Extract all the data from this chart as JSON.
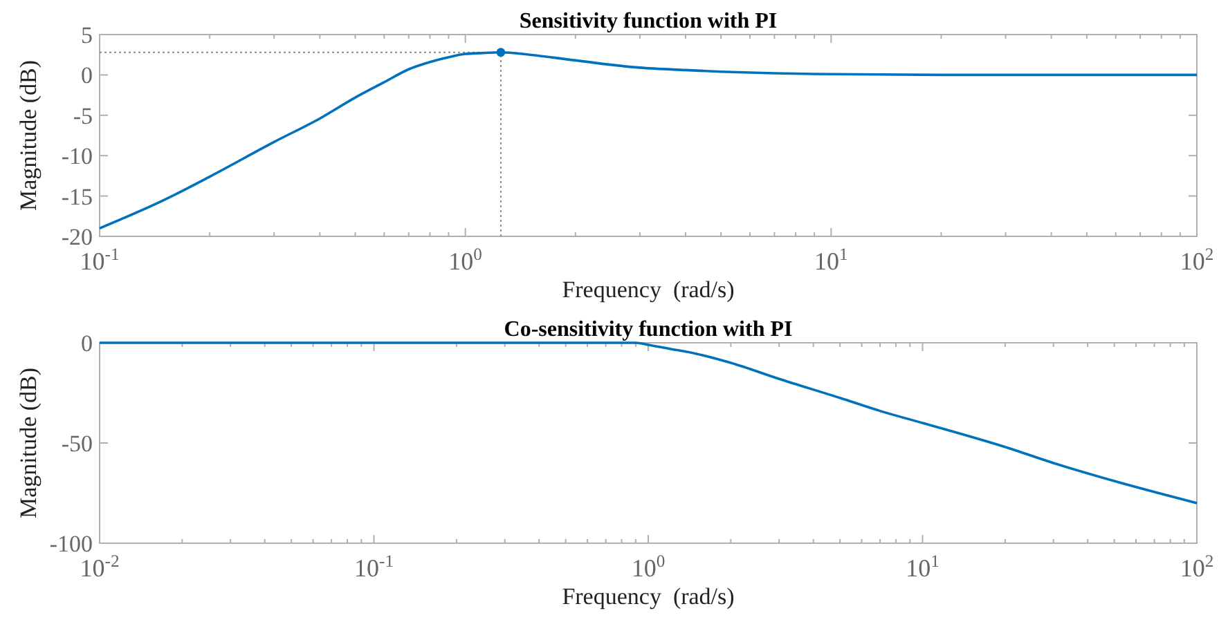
{
  "chart_data": [
    {
      "type": "line",
      "title": "Sensitivity function with PI",
      "xlabel": "Frequency  (rad/s)",
      "ylabel": "Magnitude (dB)",
      "log": "x",
      "xlim": [
        0.1,
        100
      ],
      "ylim": [
        -20,
        5
      ],
      "xticks": [
        {
          "value": 0.1,
          "label": "10$^{-1}$"
        },
        {
          "value": 1,
          "label": "10$^{0}$"
        },
        {
          "value": 10,
          "label": "10$^{1}$"
        },
        {
          "value": 100,
          "label": "10$^{2}$"
        }
      ],
      "yticks": [
        -20,
        -15,
        -10,
        -5,
        0,
        5
      ],
      "grid": false,
      "series": [
        {
          "color": "#0072bd",
          "x": [
            0.1,
            0.15,
            0.2,
            0.3,
            0.4,
            0.5,
            0.6,
            0.7,
            0.8,
            0.9,
            1.0,
            1.1,
            1.25,
            1.5,
            2,
            3,
            4,
            5,
            7,
            10,
            20,
            50,
            100
          ],
          "values": [
            -19,
            -15.5,
            -12.6,
            -8.3,
            -5.4,
            -2.8,
            -0.9,
            0.7,
            1.6,
            2.2,
            2.6,
            2.7,
            2.8,
            2.5,
            1.8,
            0.9,
            0.6,
            0.4,
            0.2,
            0.1,
            0,
            0,
            0
          ]
        },
        {
          "type": "scatter",
          "marker": "circle",
          "color": "#0072bd",
          "x": [
            1.25
          ],
          "values": [
            2.8
          ]
        }
      ],
      "ref_lines": [
        {
          "axis": "x",
          "value": 1.25,
          "color": "#8c8c8c",
          "line_style": "dotted"
        },
        {
          "axis": "y",
          "value": 2.8,
          "color": "#8c8c8c",
          "line_style": "dotted"
        }
      ]
    },
    {
      "type": "line",
      "title": "Co-sensitivity function with PI",
      "xlabel": "Frequency  (rad/s)",
      "ylabel": "Magnitude (dB)",
      "log": "x",
      "xlim": [
        0.01,
        100
      ],
      "ylim": [
        -100,
        0
      ],
      "xticks": [
        {
          "value": 0.01,
          "label": "10$^{-2}$"
        },
        {
          "value": 0.1,
          "label": "10$^{-1}$"
        },
        {
          "value": 1,
          "label": "10$^{0}$"
        },
        {
          "value": 10,
          "label": "10$^{1}$"
        },
        {
          "value": 100,
          "label": "10$^{2}$"
        }
      ],
      "yticks": [
        -100,
        -50,
        0
      ],
      "grid": false,
      "series": [
        {
          "color": "#0072bd",
          "x": [
            0.01,
            0.1,
            0.2,
            0.3,
            0.4,
            0.5,
            0.6,
            0.7,
            0.8,
            0.9,
            1.0,
            1.2,
            1.5,
            2,
            3,
            5,
            7,
            10,
            20,
            30,
            50,
            100
          ],
          "values": [
            0,
            0,
            0,
            0,
            0,
            0,
            0,
            0,
            0,
            0,
            -1,
            -3,
            -5.5,
            -10,
            -18,
            -27.5,
            -34,
            -40,
            -52,
            -60,
            -69,
            -80
          ]
        }
      ]
    }
  ]
}
